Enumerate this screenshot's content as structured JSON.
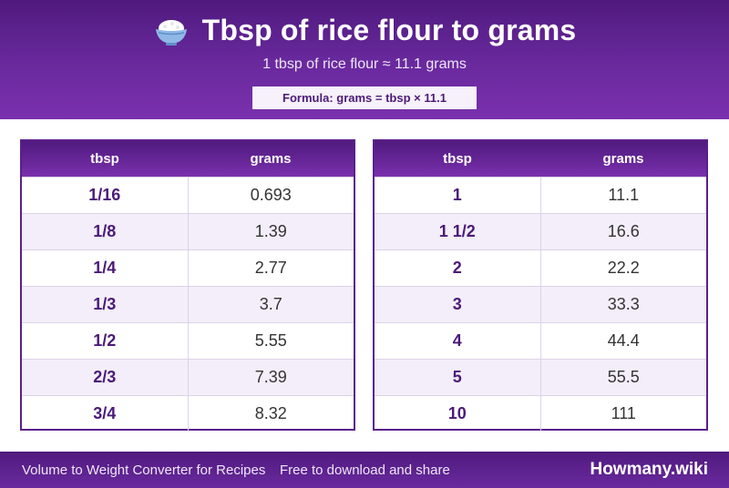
{
  "header": {
    "icon": "rice-bowl-icon",
    "title": "Tbsp of rice flour to grams",
    "subtitle": "1 tbsp of rice flour ≈ 11.1 grams",
    "formula": "Formula: grams = tbsp × 11.1"
  },
  "tables": [
    {
      "columns": [
        "tbsp",
        "grams"
      ],
      "rows": [
        [
          "1/16",
          "0.693"
        ],
        [
          "1/8",
          "1.39"
        ],
        [
          "1/4",
          "2.77"
        ],
        [
          "1/3",
          "3.7"
        ],
        [
          "1/2",
          "5.55"
        ],
        [
          "2/3",
          "7.39"
        ],
        [
          "3/4",
          "8.32"
        ]
      ]
    },
    {
      "columns": [
        "tbsp",
        "grams"
      ],
      "rows": [
        [
          "1",
          "11.1"
        ],
        [
          "1 1/2",
          "16.6"
        ],
        [
          "2",
          "22.2"
        ],
        [
          "3",
          "33.3"
        ],
        [
          "4",
          "44.4"
        ],
        [
          "5",
          "55.5"
        ],
        [
          "10",
          "111"
        ]
      ]
    }
  ],
  "footer": {
    "text1": "Volume to Weight Converter for Recipes",
    "text2": "Free to download and share",
    "brand": "Howmany.wiki"
  },
  "colors": {
    "primary": "#5a1f8c",
    "accent": "#7a30ad",
    "row_alt": "#f3eef9",
    "key_text": "#4b1a78"
  }
}
